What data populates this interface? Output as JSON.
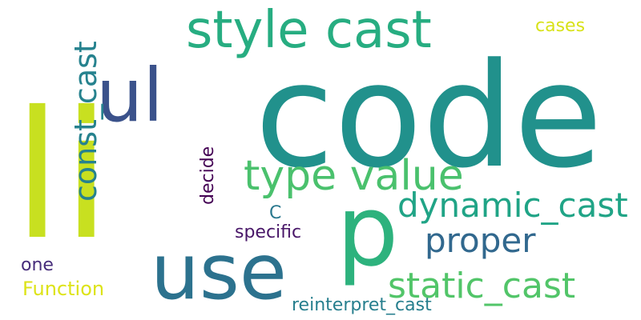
{
  "words": [
    {
      "id": "code",
      "text": "code",
      "color": "#21918c"
    },
    {
      "id": "li",
      "text": "li",
      "color": "#c8e020"
    },
    {
      "id": "p",
      "text": "p",
      "color": "#2db27d"
    },
    {
      "id": "use",
      "text": "use",
      "color": "#2c728e"
    },
    {
      "id": "ul",
      "text": "ul",
      "color": "#3b528b"
    },
    {
      "id": "style_cast",
      "text": "style cast",
      "color": "#27ad81"
    },
    {
      "id": "type_value",
      "text": "type value",
      "color": "#4ac16d"
    },
    {
      "id": "static_cast",
      "text": "static_cast",
      "color": "#52c569"
    },
    {
      "id": "dynamic_cast",
      "text": "dynamic_cast",
      "color": "#20a486"
    },
    {
      "id": "proper",
      "text": "proper",
      "color": "#31688e"
    },
    {
      "id": "const_cast",
      "text": "const_cast",
      "color": "#26828e"
    },
    {
      "id": "decide",
      "text": "decide",
      "color": "#440154"
    },
    {
      "id": "reinterpret_cast",
      "text": "reinterpret_cast",
      "color": "#277f8e"
    },
    {
      "id": "specific",
      "text": "specific",
      "color": "#481668"
    },
    {
      "id": "function",
      "text": "Function",
      "color": "#dde318"
    },
    {
      "id": "one",
      "text": "one",
      "color": "#472d7b"
    },
    {
      "id": "cases",
      "text": "cases",
      "color": "#d8e219"
    },
    {
      "id": "c",
      "text": "C",
      "color": "#2a788e"
    }
  ]
}
